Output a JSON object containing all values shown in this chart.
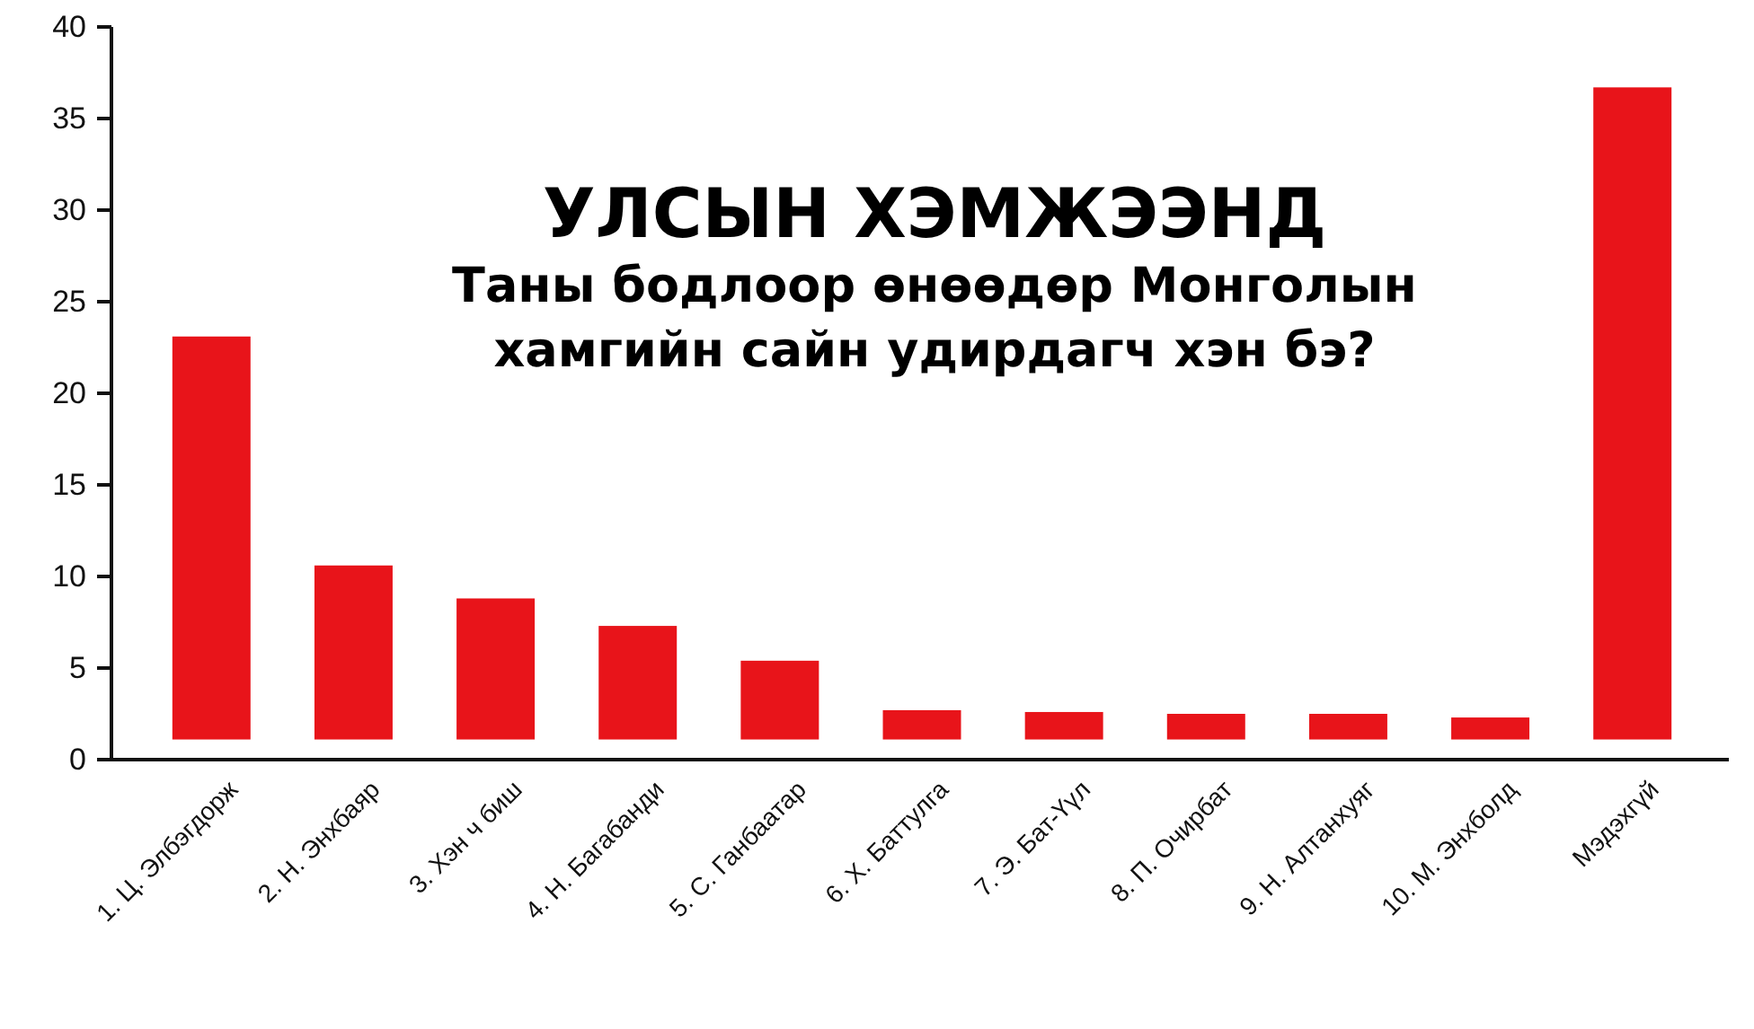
{
  "chart_data": {
    "type": "bar",
    "title": "УЛСЫН ХЭМЖЭЭНД",
    "subtitle": "Таны бодлоор өнөөдөр Монголын хамгийн сайн удирдагч хэн бэ?",
    "categories": [
      "1.  Ц. Элбэгдорж",
      "2. Н. Энхбаяр",
      "3.   Хэн ч биш",
      "4.   Н. Багабанди",
      "5.  С. Ганбаатар",
      "6.   Х. Баттулга",
      "7.   Э. Бат-Үүл",
      "8.   П. Очирбат",
      "9.   Н. Алтанхуяг",
      "10. М. Энхболд",
      "Мэдэхгүй"
    ],
    "values": [
      22.0,
      9.5,
      7.7,
      6.2,
      4.3,
      1.6,
      1.5,
      1.4,
      1.4,
      1.2,
      35.6
    ],
    "base": [
      1.1,
      1.1,
      1.1,
      1.1,
      1.1,
      1.1,
      1.1,
      1.1,
      1.1,
      1.1,
      1.1
    ],
    "color": "#e8141a",
    "ylim": [
      0,
      40
    ],
    "yticks": [
      0,
      5,
      10,
      15,
      20,
      25,
      30,
      35,
      40
    ],
    "grid": false
  }
}
